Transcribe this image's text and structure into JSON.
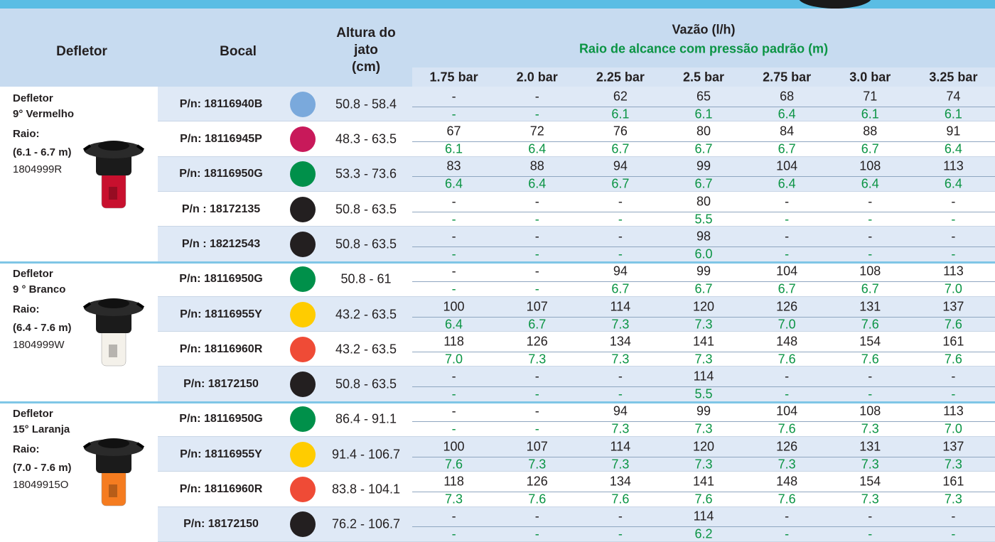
{
  "header": {
    "defletor": "Defletor",
    "bocal": "Bocal",
    "altura": [
      "Altura do",
      "jato",
      "(cm)"
    ],
    "vazao": "Vazão (l/h)",
    "raio": "Raio de alcance com pressão padrão (m)",
    "pressures": [
      "1.75 bar",
      "2.0 bar",
      "2.25 bar",
      "2.5 bar",
      "2.75 bar",
      "3.0 bar",
      "3.25 bar"
    ]
  },
  "groups": [
    {
      "name": [
        "Defletor",
        "9° Vermelho"
      ],
      "raio_label": "Raio:",
      "range": "(6.1 - 6.7 m)",
      "code": "1804999R",
      "tip_color": "#c8102e",
      "rows": [
        {
          "pn": "P/n: 18116940B",
          "color": "#7aa9dc",
          "altura": "50.8 - 58.4",
          "flow": [
            "-",
            "-",
            62,
            65,
            68,
            71,
            74
          ],
          "radius": [
            "-",
            "-",
            6.1,
            6.1,
            6.4,
            6.1,
            6.1
          ]
        },
        {
          "pn": "P/n:  18116945P",
          "color": "#c8195a",
          "altura": "48.3 - 63.5",
          "flow": [
            67,
            72,
            76,
            80,
            84,
            88,
            91
          ],
          "radius": [
            6.1,
            6.4,
            6.7,
            6.7,
            6.7,
            6.7,
            6.4
          ]
        },
        {
          "pn": "P/n: 18116950G",
          "color": "#00904a",
          "altura": "53.3 - 73.6",
          "flow": [
            83,
            88,
            94,
            99,
            104,
            108,
            113
          ],
          "radius": [
            6.4,
            6.4,
            6.7,
            6.7,
            6.4,
            6.4,
            6.4
          ]
        },
        {
          "pn": "P/n : 18172135",
          "color": "#231f20",
          "altura": "50.8 - 63.5",
          "flow": [
            "-",
            "-",
            "-",
            80,
            "-",
            "-",
            "-"
          ],
          "radius": [
            "-",
            "-",
            "-",
            5.5,
            "-",
            "-",
            "-"
          ]
        },
        {
          "pn": "P/n : 18212543",
          "color": "#231f20",
          "altura": "50.8 - 63.5",
          "flow": [
            "-",
            "-",
            "-",
            98,
            "-",
            "-",
            "-"
          ],
          "radius": [
            "-",
            "-",
            "-",
            "6.0",
            "-",
            "-",
            "-"
          ]
        }
      ]
    },
    {
      "name": [
        "Defletor",
        "9 ° Branco"
      ],
      "raio_label": "Raio:",
      "range": "(6.4 - 7.6 m)",
      "code": "1804999W",
      "tip_color": "#f4f1ea",
      "rows": [
        {
          "pn": "P/n: 18116950G",
          "color": "#00904a",
          "altura": "50.8 - 61",
          "flow": [
            "-",
            "-",
            94,
            99,
            104,
            108,
            113
          ],
          "radius": [
            "-",
            "-",
            6.7,
            6.7,
            6.7,
            6.7,
            "7.0"
          ]
        },
        {
          "pn": "P/n: 18116955Y",
          "color": "#ffcc00",
          "altura": "43.2 - 63.5",
          "flow": [
            100,
            107,
            114,
            120,
            126,
            131,
            137
          ],
          "radius": [
            6.4,
            6.7,
            7.3,
            7.3,
            "7.0",
            7.6,
            7.6
          ]
        },
        {
          "pn": "P/n: 18116960R",
          "color": "#ef4b36",
          "altura": "43.2 - 63.5",
          "flow": [
            118,
            126,
            134,
            141,
            148,
            154,
            161
          ],
          "radius": [
            "7.0",
            7.3,
            7.3,
            7.3,
            7.6,
            7.6,
            7.6
          ]
        },
        {
          "pn": "P/n: 18172150",
          "color": "#231f20",
          "altura": "50.8 - 63.5",
          "flow": [
            "-",
            "-",
            "-",
            114,
            "-",
            "-",
            "-"
          ],
          "radius": [
            "-",
            "-",
            "-",
            5.5,
            "-",
            "-",
            "-"
          ]
        }
      ]
    },
    {
      "name": [
        "Defletor",
        "15° Laranja"
      ],
      "raio_label": "Raio:",
      "range": "(7.0 - 7.6 m)",
      "code": "18049915O",
      "tip_color": "#f57c20",
      "rows": [
        {
          "pn": "P/n: 18116950G",
          "color": "#00904a",
          "altura": "86.4 - 91.1",
          "flow": [
            "-",
            "-",
            94,
            99,
            104,
            108,
            113
          ],
          "radius": [
            "-",
            "-",
            7.3,
            7.3,
            7.6,
            7.3,
            "7.0"
          ]
        },
        {
          "pn": "P/n: 18116955Y",
          "color": "#ffcc00",
          "altura": "91.4 - 106.7",
          "flow": [
            100,
            107,
            114,
            120,
            126,
            131,
            137
          ],
          "radius": [
            7.6,
            7.3,
            7.3,
            7.3,
            7.3,
            7.3,
            7.3
          ]
        },
        {
          "pn": "P/n: 18116960R",
          "color": "#ef4b36",
          "altura": "83.8 - 104.1",
          "flow": [
            118,
            126,
            134,
            141,
            148,
            154,
            161
          ],
          "radius": [
            7.3,
            7.6,
            7.6,
            7.6,
            7.6,
            7.3,
            7.3
          ]
        },
        {
          "pn": "P/n: 18172150",
          "color": "#231f20",
          "altura": "76.2 - 106.7",
          "flow": [
            "-",
            "-",
            "-",
            114,
            "-",
            "-",
            "-"
          ],
          "radius": [
            "-",
            "-",
            "-",
            6.2,
            "-",
            "-",
            "-"
          ]
        }
      ]
    }
  ]
}
